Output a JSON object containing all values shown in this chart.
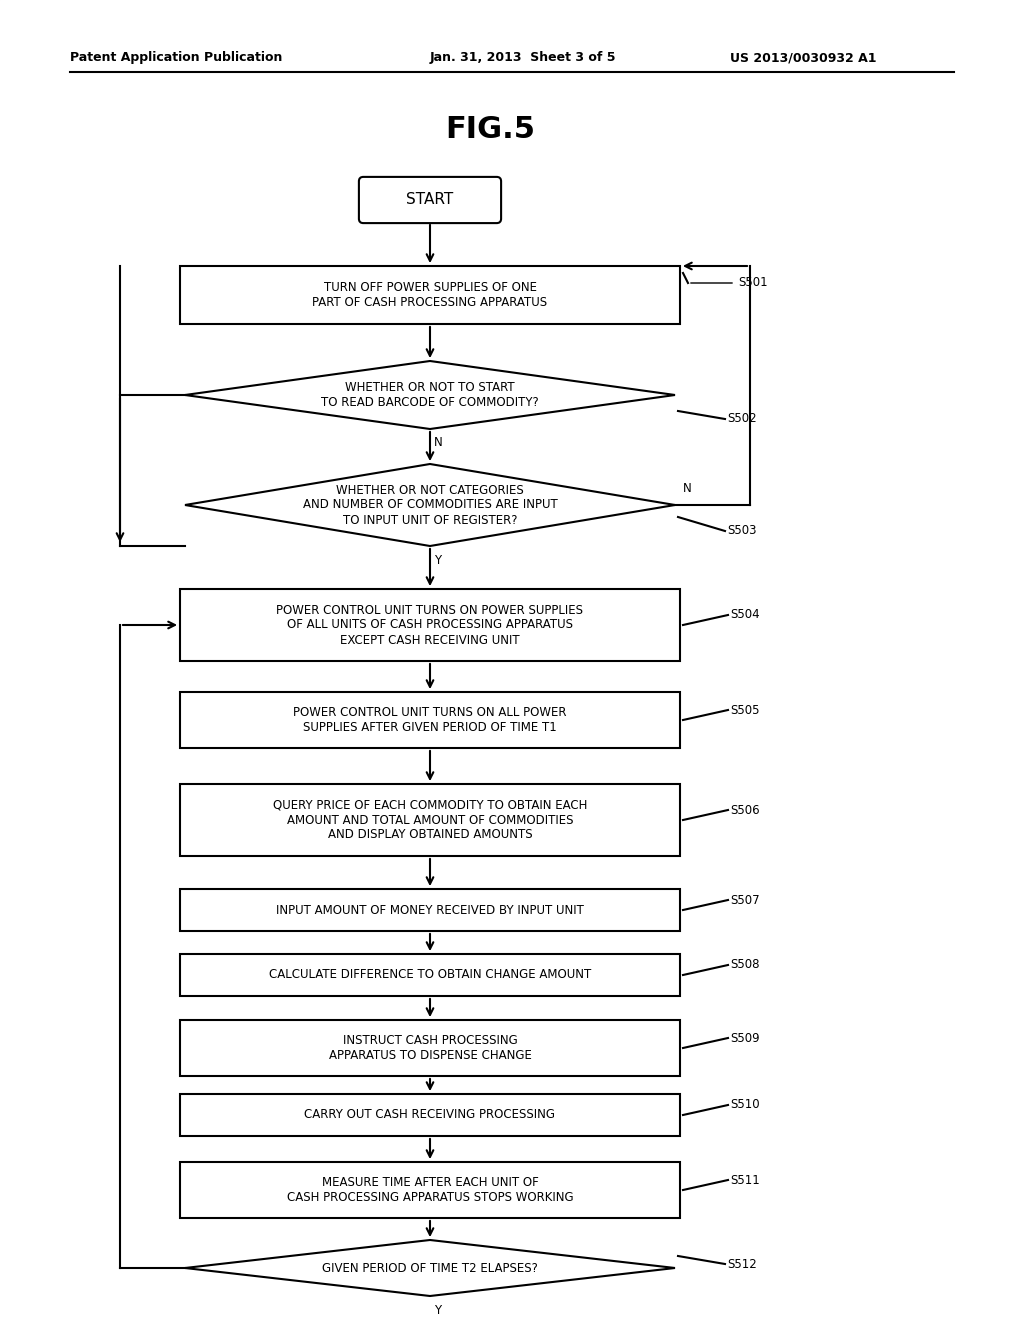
{
  "title": "FIG.5",
  "header_left": "Patent Application Publication",
  "header_center": "Jan. 31, 2013  Sheet 3 of 5",
  "header_right": "US 2013/0030932 A1",
  "bg_color": "#f5f5f5",
  "nodes": {
    "start": {
      "text": "START"
    },
    "s501": {
      "text": "TURN OFF POWER SUPPLIES OF ONE\nPART OF CASH PROCESSING APPARATUS",
      "label": "S501"
    },
    "s502": {
      "text": "WHETHER OR NOT TO START\nTO READ BARCODE OF COMMODITY?",
      "label": "S502"
    },
    "s503": {
      "text": "WHETHER OR NOT CATEGORIES\nAND NUMBER OF COMMODITIES ARE INPUT\nTO INPUT UNIT OF REGISTER?",
      "label": "S503"
    },
    "s504": {
      "text": "POWER CONTROL UNIT TURNS ON POWER SUPPLIES\nOF ALL UNITS OF CASH PROCESSING APPARATUS\nEXCEPT CASH RECEIVING UNIT",
      "label": "S504"
    },
    "s505": {
      "text": "POWER CONTROL UNIT TURNS ON ALL POWER\nSUPPLIES AFTER GIVEN PERIOD OF TIME T1",
      "label": "S505"
    },
    "s506": {
      "text": "QUERY PRICE OF EACH COMMODITY TO OBTAIN EACH\nAMOUNT AND TOTAL AMOUNT OF COMMODITIES\nAND DISPLAY OBTAINED AMOUNTS",
      "label": "S506"
    },
    "s507": {
      "text": "INPUT AMOUNT OF MONEY RECEIVED BY INPUT UNIT",
      "label": "S507"
    },
    "s508": {
      "text": "CALCULATE DIFFERENCE TO OBTAIN CHANGE AMOUNT",
      "label": "S508"
    },
    "s509": {
      "text": "INSTRUCT CASH PROCESSING\nAPPARATUS TO DISPENSE CHANGE",
      "label": "S509"
    },
    "s510": {
      "text": "CARRY OUT CASH RECEIVING PROCESSING",
      "label": "S510"
    },
    "s511": {
      "text": "MEASURE TIME AFTER EACH UNIT OF\nCASH PROCESSING APPARATUS STOPS WORKING",
      "label": "S511"
    },
    "s512": {
      "text": "GIVEN PERIOD OF TIME T2 ELAPSES?",
      "label": "S512"
    }
  }
}
